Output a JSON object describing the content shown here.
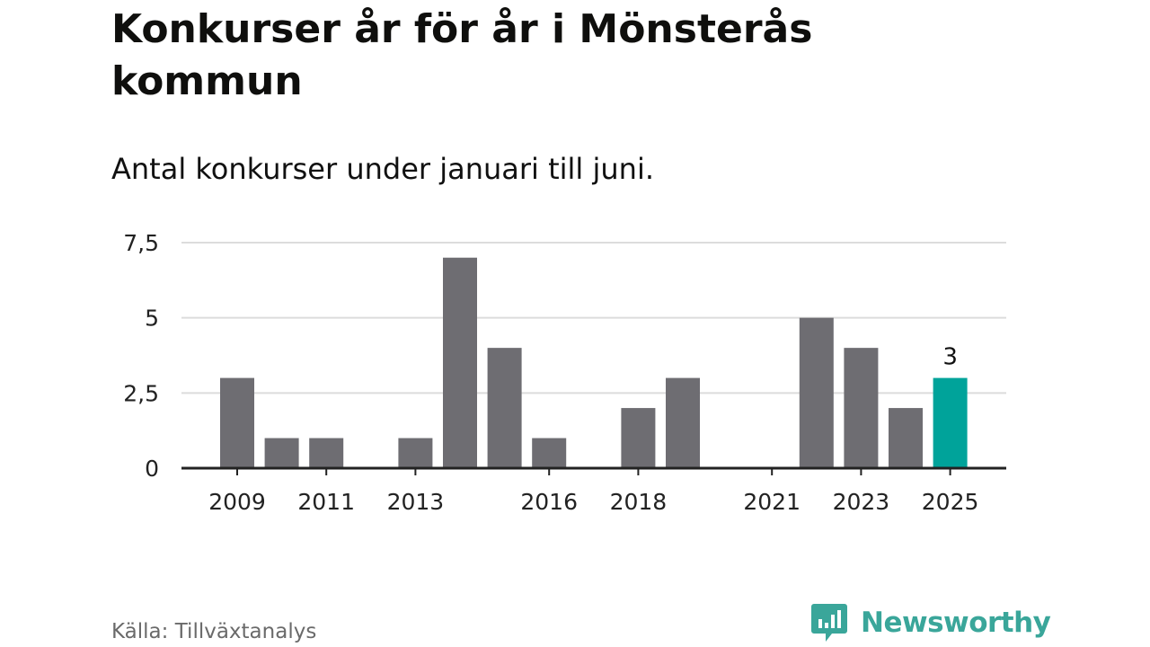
{
  "header": {
    "title": "Konkurser år för år i Mönsterås kommun",
    "subtitle": "Antal konkurser under januari till juni."
  },
  "footer": {
    "source": "Källa: Tillväxtanalys",
    "brand": "Newsworthy"
  },
  "colors": {
    "bar": "#6e6d72",
    "highlight": "#00a39a",
    "grid": "#dcdcdc",
    "axis": "#222222",
    "brand": "#3aa69a"
  },
  "chart_data": {
    "type": "bar",
    "categories": [
      "2009",
      "2010",
      "2011",
      "2012",
      "2013",
      "2014",
      "2015",
      "2016",
      "2017",
      "2018",
      "2019",
      "2020",
      "2021",
      "2022",
      "2023",
      "2024",
      "2025"
    ],
    "values": [
      3,
      1,
      1,
      0,
      1,
      7,
      4,
      1,
      0,
      2,
      3,
      0,
      0,
      5,
      4,
      2,
      3
    ],
    "x_tick_labels": [
      "2009",
      "2011",
      "2013",
      "2016",
      "2018",
      "2021",
      "2023",
      "2025"
    ],
    "y_tick_labels": [
      "0",
      "2,5",
      "5",
      "7,5"
    ],
    "y_ticks": [
      0,
      2.5,
      5,
      7.5
    ],
    "ylim": [
      0,
      7.5
    ],
    "highlight_category": "2025",
    "data_labels": [
      {
        "category": "2025",
        "text": "3"
      }
    ],
    "grid": true,
    "xlabel": "",
    "ylabel": ""
  }
}
